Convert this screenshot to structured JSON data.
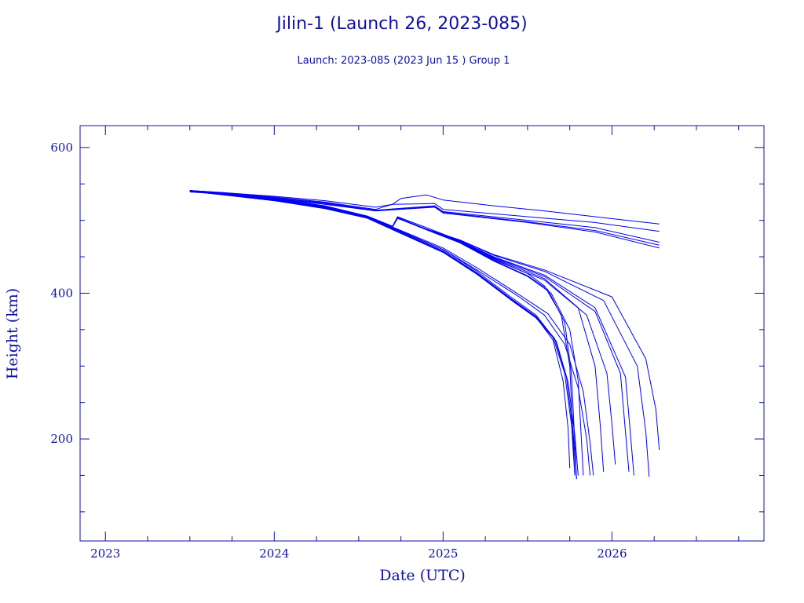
{
  "chart_data": {
    "type": "line",
    "title": "Jilin-1 (Launch 26, 2023-085)",
    "subtitle": "Launch: 2023-085  (2023 Jun 15 )  Group 1",
    "xlabel": "Date (UTC)",
    "ylabel": "Height (km)",
    "xlim": [
      2022.85,
      2026.9
    ],
    "ylim": [
      60,
      630
    ],
    "x_ticks": [
      2023,
      2024,
      2025,
      2026
    ],
    "x_tick_labels": [
      "2023",
      "2024",
      "2025",
      "2026"
    ],
    "y_ticks": [
      200,
      400,
      600
    ],
    "y_tick_labels": [
      "200",
      "400",
      "600"
    ],
    "grid": false,
    "line_color": "#0000ee",
    "series": [
      {
        "x": [
          2023.5,
          2023.7,
          2024.0,
          2024.3,
          2024.6,
          2024.7,
          2024.95,
          2025.0,
          2025.5,
          2025.9,
          2026.28
        ],
        "y": [
          541,
          538,
          532,
          525,
          515,
          522,
          523,
          515,
          505,
          497,
          485
        ]
      },
      {
        "x": [
          2023.5,
          2023.7,
          2024.0,
          2024.3,
          2024.6,
          2024.95,
          2025.0,
          2025.5,
          2025.9,
          2026.28
        ],
        "y": [
          540,
          537,
          531,
          524,
          514,
          520,
          512,
          500,
          490,
          470
        ]
      },
      {
        "x": [
          2023.5,
          2023.7,
          2024.0,
          2024.3,
          2024.6,
          2024.95,
          2025.0,
          2025.5,
          2025.9,
          2026.28
        ],
        "y": [
          539,
          536,
          530,
          523,
          513,
          519,
          511,
          498,
          486,
          466
        ]
      },
      {
        "x": [
          2023.5,
          2023.7,
          2024.0,
          2024.3,
          2024.6,
          2024.95,
          2025.0,
          2025.5,
          2025.9,
          2026.28
        ],
        "y": [
          540,
          536,
          530,
          522,
          513,
          518,
          510,
          497,
          484,
          462
        ]
      },
      {
        "x": [
          2023.5,
          2023.7,
          2024.0,
          2024.3,
          2024.6,
          2024.7,
          2024.75,
          2024.9,
          2025.0,
          2025.3,
          2025.6,
          2025.9,
          2026.28
        ],
        "y": [
          541,
          538,
          533,
          527,
          518,
          522,
          530,
          535,
          528,
          520,
          513,
          505,
          495
        ]
      },
      {
        "x": [
          2023.5,
          2023.7,
          2024.0,
          2024.3,
          2024.55,
          2024.7,
          2024.73,
          2024.9,
          2025.1,
          2025.3,
          2025.5,
          2025.6,
          2025.7,
          2025.75,
          2025.78
        ],
        "y": [
          541,
          537,
          530,
          520,
          506,
          492,
          505,
          490,
          472,
          447,
          427,
          410,
          370,
          300,
          150
        ]
      },
      {
        "x": [
          2023.5,
          2023.7,
          2024.0,
          2024.3,
          2024.55,
          2024.7,
          2024.73,
          2024.9,
          2025.1,
          2025.3,
          2025.5,
          2025.62,
          2025.72,
          2025.76,
          2025.79
        ],
        "y": [
          540,
          536,
          529,
          519,
          505,
          491,
          504,
          488,
          470,
          445,
          424,
          405,
          360,
          290,
          145
        ]
      },
      {
        "x": [
          2023.5,
          2023.7,
          2024.0,
          2024.3,
          2024.55,
          2024.7,
          2024.73,
          2024.9,
          2025.1,
          2025.3,
          2025.5,
          2025.64,
          2025.75,
          2025.8,
          2025.83
        ],
        "y": [
          540,
          536,
          529,
          519,
          505,
          491,
          503,
          487,
          469,
          444,
          423,
          400,
          350,
          280,
          150
        ]
      },
      {
        "x": [
          2023.5,
          2023.7,
          2024.0,
          2024.3,
          2024.55,
          2024.7,
          2024.73,
          2024.9,
          2025.1,
          2025.3,
          2025.6,
          2025.8,
          2025.9,
          2025.93,
          2025.95
        ],
        "y": [
          540,
          536,
          529,
          519,
          505,
          491,
          503,
          488,
          471,
          448,
          420,
          380,
          300,
          220,
          155
        ]
      },
      {
        "x": [
          2023.5,
          2023.7,
          2024.0,
          2024.3,
          2024.55,
          2024.7,
          2024.73,
          2024.9,
          2025.1,
          2025.3,
          2025.6,
          2025.85,
          2025.97,
          2026.0,
          2026.02
        ],
        "y": [
          540,
          536,
          529,
          519,
          505,
          491,
          503,
          488,
          471,
          446,
          418,
          370,
          290,
          220,
          165
        ]
      },
      {
        "x": [
          2023.5,
          2023.7,
          2024.0,
          2024.3,
          2024.55,
          2024.7,
          2024.73,
          2024.9,
          2025.1,
          2025.3,
          2025.6,
          2025.9,
          2026.05,
          2026.08,
          2026.1
        ],
        "y": [
          540,
          536,
          529,
          519,
          505,
          491,
          503,
          488,
          472,
          449,
          423,
          375,
          290,
          210,
          155
        ]
      },
      {
        "x": [
          2023.5,
          2023.7,
          2024.0,
          2024.3,
          2024.55,
          2024.7,
          2024.73,
          2024.9,
          2025.1,
          2025.3,
          2025.6,
          2025.9,
          2026.08,
          2026.11,
          2026.13
        ],
        "y": [
          540,
          536,
          529,
          519,
          505,
          491,
          503,
          488,
          472,
          450,
          425,
          380,
          285,
          205,
          150
        ]
      },
      {
        "x": [
          2023.5,
          2023.7,
          2024.0,
          2024.3,
          2024.55,
          2024.7,
          2024.73,
          2024.9,
          2025.1,
          2025.3,
          2025.6,
          2025.95,
          2026.15,
          2026.2,
          2026.22
        ],
        "y": [
          540,
          536,
          529,
          519,
          505,
          491,
          503,
          488,
          473,
          452,
          430,
          390,
          300,
          210,
          148
        ]
      },
      {
        "x": [
          2023.5,
          2023.7,
          2024.0,
          2024.3,
          2024.55,
          2024.7,
          2024.73,
          2024.9,
          2025.1,
          2025.3,
          2025.6,
          2026.0,
          2026.2,
          2026.26,
          2026.28
        ],
        "y": [
          540,
          536,
          529,
          519,
          505,
          491,
          503,
          488,
          473,
          453,
          432,
          395,
          310,
          240,
          185
        ]
      },
      {
        "x": [
          2023.5,
          2023.7,
          2024.0,
          2024.3,
          2024.55,
          2024.75,
          2025.0,
          2025.2,
          2025.4,
          2025.55,
          2025.65,
          2025.72,
          2025.76,
          2025.78
        ],
        "y": [
          541,
          536,
          528,
          518,
          505,
          485,
          460,
          430,
          395,
          370,
          340,
          290,
          220,
          150
        ]
      },
      {
        "x": [
          2023.5,
          2023.7,
          2024.0,
          2024.3,
          2024.55,
          2024.75,
          2025.0,
          2025.2,
          2025.4,
          2025.55,
          2025.66,
          2025.73,
          2025.77,
          2025.79
        ],
        "y": [
          540,
          536,
          528,
          517,
          504,
          484,
          458,
          428,
          393,
          368,
          338,
          285,
          210,
          145
        ]
      },
      {
        "x": [
          2023.5,
          2023.7,
          2024.0,
          2024.3,
          2024.55,
          2024.75,
          2025.0,
          2025.2,
          2025.4,
          2025.55,
          2025.65,
          2025.71,
          2025.74,
          2025.75
        ],
        "y": [
          540,
          535,
          527,
          517,
          504,
          483,
          457,
          427,
          392,
          367,
          336,
          280,
          215,
          160
        ]
      },
      {
        "x": [
          2023.5,
          2023.7,
          2024.0,
          2024.3,
          2024.55,
          2024.75,
          2025.0,
          2025.2,
          2025.4,
          2025.55,
          2025.67,
          2025.74,
          2025.78,
          2025.8
        ],
        "y": [
          540,
          535,
          527,
          516,
          503,
          482,
          456,
          426,
          391,
          366,
          334,
          278,
          205,
          150
        ]
      },
      {
        "x": [
          2023.5,
          2023.7,
          2024.0,
          2024.3,
          2024.55,
          2024.75,
          2025.0,
          2025.2,
          2025.45,
          2025.6,
          2025.72,
          2025.8,
          2025.85,
          2025.87
        ],
        "y": [
          540,
          536,
          528,
          518,
          505,
          485,
          460,
          432,
          395,
          370,
          330,
          270,
          200,
          150
        ]
      },
      {
        "x": [
          2023.5,
          2023.7,
          2024.0,
          2024.3,
          2024.55,
          2024.75,
          2025.0,
          2025.2,
          2025.45,
          2025.62,
          2025.75,
          2025.83,
          2025.87,
          2025.89
        ],
        "y": [
          540,
          536,
          528,
          518,
          505,
          486,
          462,
          435,
          398,
          372,
          330,
          265,
          195,
          150
        ]
      }
    ]
  }
}
